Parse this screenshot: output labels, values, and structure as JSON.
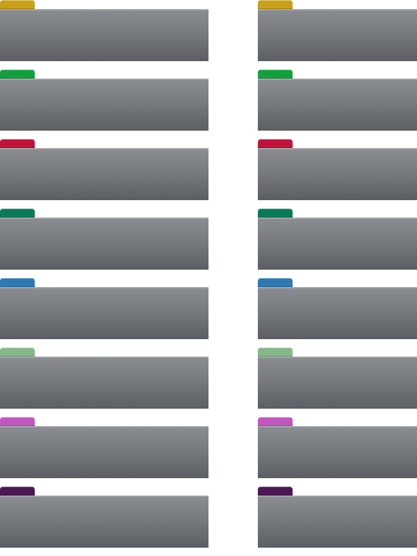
{
  "tabs": {
    "colors": [
      {
        "name": "gold",
        "hex": "#c9a118"
      },
      {
        "name": "green",
        "hex": "#12a13e"
      },
      {
        "name": "red",
        "hex": "#c0123a"
      },
      {
        "name": "teal",
        "hex": "#0a7b59"
      },
      {
        "name": "blue",
        "hex": "#2d79b2"
      },
      {
        "name": "light-green",
        "hex": "#86b887"
      },
      {
        "name": "pink",
        "hex": "#c056c0"
      },
      {
        "name": "purple",
        "hex": "#4c1752"
      }
    ]
  },
  "panel": {
    "fill_top": "#8a8d92",
    "fill_bottom": "#5b5e62"
  }
}
